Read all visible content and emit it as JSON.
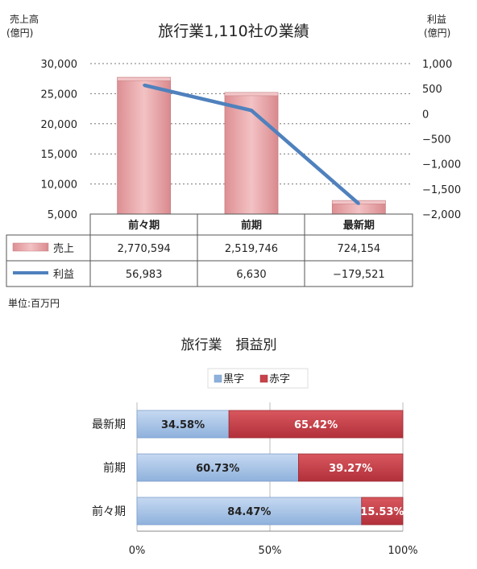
{
  "chart_data": [
    {
      "type": "bar+line",
      "title": "旅行業1,110社の業績",
      "y_left_label": [
        "売上高",
        "(億円)"
      ],
      "y_right_label": [
        "利益",
        "(億円)"
      ],
      "y_left_ticks": [
        "30,000",
        "25,000",
        "20,000",
        "15,000",
        "10,000",
        "5,000"
      ],
      "y_right_ticks": [
        "1,000",
        "500",
        "0",
        "−500",
        "−1,000",
        "−1,500",
        "−2,000"
      ],
      "ylim_left": [
        5000,
        30000
      ],
      "ylim_right": [
        -2000,
        1000
      ],
      "categories": [
        "前々期",
        "前期",
        "最新期"
      ],
      "series": [
        {
          "name": "売上",
          "type": "bar",
          "unit_axis": "left",
          "values": [
            27706,
            25197,
            7242
          ],
          "color": "#e8a3a6"
        },
        {
          "name": "利益",
          "type": "line",
          "unit_axis": "right",
          "values": [
            570,
            66,
            -1795
          ],
          "color": "#4f81bd"
        }
      ],
      "table": {
        "rows": [
          {
            "label": "売上",
            "values": [
              "2,770,594",
              "2,519,746",
              "724,154"
            ]
          },
          {
            "label": "利益",
            "values": [
              "56,983",
              "6,630",
              "−179,521"
            ]
          }
        ]
      },
      "unit_note": "単位:百万円",
      "grid": true
    },
    {
      "type": "stacked-bar-horizontal",
      "title": "旅行業　損益別",
      "legend": [
        "黒字",
        "赤字"
      ],
      "legend_position": "top",
      "categories": [
        "最新期",
        "前期",
        "前々期"
      ],
      "series": [
        {
          "name": "黒字",
          "values": [
            34.58,
            60.73,
            84.47
          ],
          "labels": [
            "34.58%",
            "60.73%",
            "84.47%"
          ],
          "color": "#a9c4e8"
        },
        {
          "name": "赤字",
          "values": [
            65.42,
            39.27,
            15.53
          ],
          "labels": [
            "65.42%",
            "39.27%",
            "15.53%"
          ],
          "color": "#c9424a"
        }
      ],
      "x_ticks": [
        "0%",
        "50%",
        "100%"
      ],
      "xlim": [
        0,
        100
      ]
    }
  ]
}
